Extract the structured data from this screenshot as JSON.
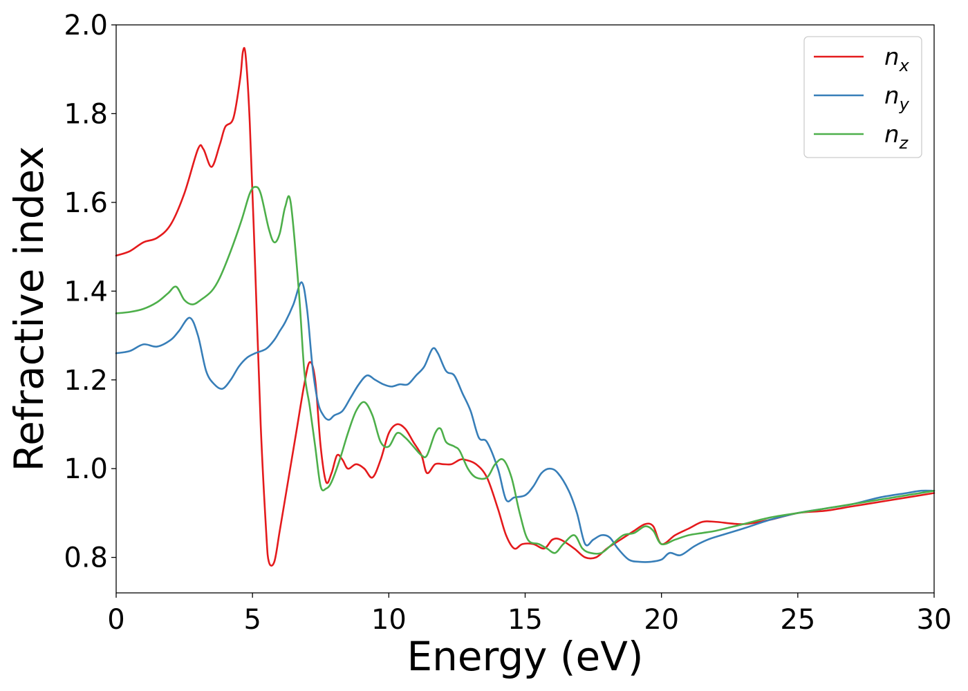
{
  "chart_data": {
    "type": "line",
    "xlabel": "Energy (eV)",
    "ylabel": "Refractive index",
    "xlim": [
      0,
      30
    ],
    "ylim": [
      0.72,
      2.0
    ],
    "xticks": [
      0,
      5,
      10,
      15,
      20,
      25,
      30
    ],
    "xtick_labels": [
      "0",
      "5",
      "10",
      "15",
      "20",
      "25",
      "30"
    ],
    "yticks": [
      0.8,
      1.0,
      1.2,
      1.4,
      1.6,
      1.8,
      2.0
    ],
    "ytick_labels": [
      "0.8",
      "1.0",
      "1.2",
      "1.4",
      "1.6",
      "1.8",
      "2.0"
    ],
    "grid": false,
    "legend_position": "top-right",
    "series": [
      {
        "name": "n_x",
        "label_base": "n",
        "label_sub": "x",
        "color": "#e41a1c",
        "x": [
          0,
          0.5,
          1.0,
          1.5,
          2.0,
          2.5,
          3.0,
          3.2,
          3.5,
          3.8,
          4.0,
          4.3,
          4.55,
          4.65,
          4.75,
          4.9,
          5.1,
          5.3,
          5.5,
          5.6,
          5.8,
          6.0,
          6.3,
          6.6,
          6.9,
          7.1,
          7.3,
          7.5,
          7.7,
          7.9,
          8.1,
          8.3,
          8.5,
          8.8,
          9.1,
          9.4,
          9.7,
          10.0,
          10.3,
          10.6,
          10.9,
          11.2,
          11.4,
          11.7,
          12.0,
          12.3,
          12.6,
          12.8,
          13.2,
          13.6,
          14.0,
          14.3,
          14.6,
          14.9,
          15.3,
          15.7,
          16.0,
          16.3,
          16.8,
          17.2,
          17.6,
          18.0,
          18.5,
          19.0,
          19.4,
          19.7,
          20.0,
          20.5,
          21.0,
          21.5,
          22.0,
          23.0,
          24.0,
          25.0,
          26.0,
          27.0,
          28.0,
          29.0,
          30.0
        ],
        "y": [
          1.48,
          1.49,
          1.51,
          1.52,
          1.55,
          1.62,
          1.72,
          1.72,
          1.68,
          1.73,
          1.77,
          1.79,
          1.88,
          1.94,
          1.93,
          1.78,
          1.45,
          1.1,
          0.86,
          0.79,
          0.79,
          0.86,
          0.97,
          1.08,
          1.19,
          1.24,
          1.2,
          1.05,
          0.97,
          0.99,
          1.03,
          1.02,
          1.0,
          1.01,
          1.0,
          0.98,
          1.02,
          1.08,
          1.1,
          1.09,
          1.06,
          1.03,
          0.99,
          1.01,
          1.01,
          1.01,
          1.02,
          1.02,
          1.01,
          0.98,
          0.91,
          0.85,
          0.82,
          0.83,
          0.83,
          0.82,
          0.84,
          0.84,
          0.82,
          0.8,
          0.8,
          0.82,
          0.84,
          0.86,
          0.875,
          0.87,
          0.83,
          0.85,
          0.865,
          0.88,
          0.88,
          0.875,
          0.885,
          0.9,
          0.905,
          0.915,
          0.925,
          0.935,
          0.945
        ]
      },
      {
        "name": "n_y",
        "label_base": "n",
        "label_sub": "y",
        "color": "#377eb8",
        "x": [
          0,
          0.5,
          1.0,
          1.5,
          2.0,
          2.3,
          2.7,
          3.0,
          3.3,
          3.6,
          3.9,
          4.2,
          4.5,
          4.8,
          5.1,
          5.5,
          5.8,
          6.0,
          6.2,
          6.5,
          6.8,
          7.0,
          7.2,
          7.4,
          7.6,
          7.8,
          8.0,
          8.3,
          8.6,
          8.9,
          9.2,
          9.5,
          9.8,
          10.1,
          10.4,
          10.7,
          11.0,
          11.3,
          11.6,
          11.8,
          12.1,
          12.4,
          12.7,
          13.0,
          13.3,
          13.6,
          14.0,
          14.3,
          14.6,
          15.0,
          15.3,
          15.6,
          15.9,
          16.2,
          16.6,
          16.9,
          17.2,
          17.5,
          17.8,
          18.1,
          18.4,
          18.8,
          19.2,
          19.6,
          20.0,
          20.3,
          20.7,
          21.2,
          21.7,
          22.2,
          23.0,
          24.0,
          25.0,
          26.0,
          27.0,
          28.0,
          29.0,
          29.5,
          30.0
        ],
        "y": [
          1.26,
          1.265,
          1.28,
          1.275,
          1.29,
          1.31,
          1.34,
          1.3,
          1.22,
          1.19,
          1.18,
          1.2,
          1.23,
          1.25,
          1.26,
          1.27,
          1.29,
          1.31,
          1.33,
          1.37,
          1.42,
          1.36,
          1.23,
          1.15,
          1.12,
          1.11,
          1.12,
          1.13,
          1.16,
          1.19,
          1.21,
          1.2,
          1.19,
          1.185,
          1.19,
          1.19,
          1.21,
          1.23,
          1.27,
          1.26,
          1.22,
          1.21,
          1.17,
          1.13,
          1.07,
          1.06,
          1.0,
          0.93,
          0.935,
          0.94,
          0.96,
          0.99,
          1.0,
          0.99,
          0.95,
          0.9,
          0.83,
          0.84,
          0.85,
          0.845,
          0.82,
          0.795,
          0.79,
          0.79,
          0.795,
          0.81,
          0.805,
          0.825,
          0.84,
          0.85,
          0.865,
          0.885,
          0.9,
          0.91,
          0.92,
          0.935,
          0.945,
          0.95,
          0.95
        ]
      },
      {
        "name": "n_z",
        "label_base": "n",
        "label_sub": "z",
        "color": "#4daf4a",
        "x": [
          0,
          0.5,
          1.0,
          1.5,
          1.9,
          2.2,
          2.5,
          2.8,
          3.1,
          3.5,
          3.8,
          4.2,
          4.6,
          4.9,
          5.1,
          5.3,
          5.6,
          5.8,
          6.0,
          6.2,
          6.4,
          6.7,
          6.9,
          7.1,
          7.3,
          7.5,
          7.7,
          7.9,
          8.2,
          8.5,
          8.8,
          9.1,
          9.4,
          9.7,
          10.0,
          10.3,
          10.6,
          10.9,
          11.2,
          11.4,
          11.7,
          11.9,
          12.1,
          12.4,
          12.6,
          12.9,
          13.2,
          13.6,
          13.9,
          14.2,
          14.5,
          14.8,
          15.1,
          15.5,
          15.8,
          16.1,
          16.4,
          16.8,
          17.1,
          17.4,
          17.8,
          18.2,
          18.6,
          19.0,
          19.4,
          19.7,
          20.0,
          20.5,
          21.0,
          21.5,
          22.0,
          23.0,
          24.0,
          25.0,
          26.0,
          27.0,
          28.0,
          29.0,
          30.0
        ],
        "y": [
          1.35,
          1.353,
          1.36,
          1.375,
          1.395,
          1.41,
          1.38,
          1.37,
          1.38,
          1.4,
          1.43,
          1.49,
          1.56,
          1.62,
          1.635,
          1.62,
          1.54,
          1.51,
          1.53,
          1.59,
          1.6,
          1.4,
          1.22,
          1.14,
          1.05,
          0.96,
          0.955,
          0.97,
          1.02,
          1.08,
          1.13,
          1.15,
          1.12,
          1.06,
          1.05,
          1.08,
          1.07,
          1.05,
          1.03,
          1.03,
          1.08,
          1.09,
          1.06,
          1.05,
          1.04,
          1.0,
          0.98,
          0.98,
          1.01,
          1.02,
          0.98,
          0.9,
          0.84,
          0.83,
          0.82,
          0.81,
          0.83,
          0.85,
          0.82,
          0.81,
          0.81,
          0.83,
          0.85,
          0.855,
          0.87,
          0.86,
          0.83,
          0.84,
          0.85,
          0.855,
          0.86,
          0.875,
          0.89,
          0.9,
          0.91,
          0.92,
          0.93,
          0.94,
          0.95
        ]
      }
    ]
  }
}
